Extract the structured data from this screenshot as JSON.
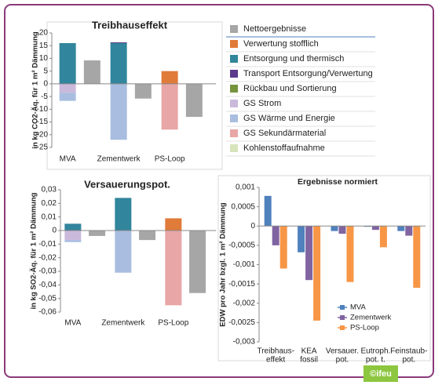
{
  "chart_data": [
    {
      "type": "stacked_bar",
      "title": "Treibhauseffekt",
      "y_label": "in kg CO2-Äq. für 1 m² Dämmung",
      "categories": [
        "MVA",
        "Zementwerk",
        "PS-Loop"
      ],
      "ylim": [
        -25,
        20
      ],
      "yticks": [
        20,
        15,
        10,
        5,
        0,
        -5,
        -10,
        -15,
        -20,
        -25
      ],
      "net": {
        "name": "Nettoergebnisse",
        "color": "#a6a6a6",
        "values": [
          9.2,
          -5.8,
          -13
        ]
      },
      "series": [
        {
          "name": "Verwertung stofflich",
          "color": "#e07b39",
          "values": [
            0,
            0,
            5
          ]
        },
        {
          "name": "Entsorgung und thermisch",
          "color": "#31859c",
          "values": [
            16,
            16,
            0
          ]
        },
        {
          "name": "Transport Entsorgung/Verwertung",
          "color": "#5b3a8c",
          "values": [
            0,
            0.3,
            0
          ]
        },
        {
          "name": "Rückbau und Sortierung",
          "color": "#77933c",
          "values": [
            0,
            0,
            0
          ]
        },
        {
          "name": "GS Strom",
          "color": "#cbb9db",
          "values": [
            -3.5,
            0,
            0
          ]
        },
        {
          "name": "GS Wärme und Energie",
          "color": "#a9bde0",
          "values": [
            -3.2,
            -22,
            0
          ]
        },
        {
          "name": "GS Sekundärmaterial",
          "color": "#e8a6a6",
          "values": [
            0,
            0,
            -18
          ]
        },
        {
          "name": "Kohlenstoffaufnahme",
          "color": "#d7e4bc",
          "values": [
            0,
            0,
            0
          ]
        }
      ]
    },
    {
      "type": "stacked_bar",
      "title": "Versauerungspot.",
      "y_label": "in kg SO2-Äq. für 1 m² Dämmung",
      "categories": [
        "MVA",
        "Zementwerk",
        "PS-Loop"
      ],
      "ylim": [
        -0.06,
        0.03
      ],
      "yticks": [
        {
          "value": 0.03,
          "label": "0,03"
        },
        {
          "value": 0.02,
          "label": "0,02"
        },
        {
          "value": 0.01,
          "label": "0,01"
        },
        0,
        {
          "value": -0.01,
          "label": "-0,01"
        },
        {
          "value": -0.02,
          "label": "-0,02"
        },
        {
          "value": -0.03,
          "label": "-0,03"
        },
        {
          "value": -0.04,
          "label": "-0,04"
        },
        {
          "value": -0.05,
          "label": "-0,05"
        },
        {
          "value": -0.06,
          "label": "-0,06"
        }
      ],
      "net": {
        "color": "#a6a6a6",
        "values": [
          -0.004,
          -0.007,
          -0.046
        ]
      },
      "series": [
        {
          "color": "#e07b39",
          "values": [
            0,
            0,
            0.009
          ]
        },
        {
          "color": "#31859c",
          "values": [
            0.005,
            0.024,
            0
          ]
        },
        {
          "color": "#5b3a8c",
          "values": [
            0,
            0,
            0
          ]
        },
        {
          "color": "#77933c",
          "values": [
            0,
            0,
            0
          ]
        },
        {
          "color": "#cbb9db",
          "values": [
            -0.007,
            0,
            0
          ]
        },
        {
          "color": "#a9bde0",
          "values": [
            -0.0015,
            -0.031,
            0
          ]
        },
        {
          "color": "#e8a6a6",
          "values": [
            0,
            0,
            -0.055
          ]
        },
        {
          "color": "#d7e4bc",
          "values": [
            0,
            0,
            0
          ]
        }
      ]
    },
    {
      "type": "grouped_bar",
      "title": "Ergebnisse normiert",
      "y_label": "EDW pro Jahr bzgl. 1 m² Dämmung",
      "categories": [
        [
          "Treibhaus-",
          "effekt"
        ],
        [
          "KEA",
          "fossil"
        ],
        [
          "Versauer.",
          "pot."
        ],
        [
          "Eutroph.",
          "pot. t."
        ],
        [
          "Feinstaub-",
          "pot."
        ]
      ],
      "ylim": [
        -0.003,
        0.001
      ],
      "yticks": [
        {
          "value": 0.001,
          "label": "0,001"
        },
        {
          "value": 0.0005,
          "label": "0,0005"
        },
        0,
        {
          "value": -0.0005,
          "label": "-0,0005"
        },
        {
          "value": -0.001,
          "label": "-0,001"
        },
        {
          "value": -0.0015,
          "label": "-0,0015"
        },
        {
          "value": -0.002,
          "label": "-0,002"
        },
        {
          "value": -0.0025,
          "label": "-0,0025"
        },
        {
          "value": -0.003,
          "label": "-0,003"
        }
      ],
      "legend": "lower right",
      "series": [
        {
          "name": "MVA",
          "color": "#4f81bd",
          "values": [
            0.00078,
            -0.00068,
            -0.00013,
            -2e-05,
            -0.00013
          ]
        },
        {
          "name": "Zementwerk",
          "color": "#8064a2",
          "values": [
            -0.0005,
            -0.0014,
            -0.0002,
            -0.0001,
            -0.00025
          ]
        },
        {
          "name": "PS-Loop",
          "color": "#f79646",
          "values": [
            -0.0011,
            -0.00245,
            -0.00145,
            -0.00055,
            -0.0016
          ]
        }
      ]
    }
  ],
  "footer": {
    "badge": "©ifeu"
  }
}
